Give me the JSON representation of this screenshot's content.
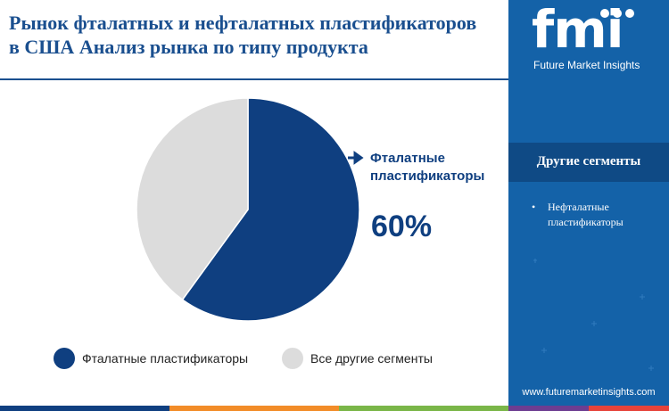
{
  "title_lines": [
    "Рынок фталатных и нефталатных пластификаторов",
    "в США Анализ рынка по типу продукта"
  ],
  "brand": {
    "logo_text": "fmi",
    "caption": "Future Market Insights",
    "website": "www.futuremarketinsights.com"
  },
  "other_segments": {
    "title": "Другие сегменты",
    "items": [
      "Нефталатные пластификаторы"
    ]
  },
  "colors": {
    "primary": "#0f3f80",
    "other": "#dcdcdc",
    "panel": "#1462a8",
    "accent_orange": "#f28c28",
    "accent_green": "#7ab648",
    "accent_purple": "#6d3d91",
    "accent_red": "#e6433a"
  },
  "chart_data": {
    "type": "pie",
    "title": "",
    "slices": [
      {
        "name": "Фталатные пластификаторы",
        "value": 60,
        "color": "#0f3f80"
      },
      {
        "name": "Все другие сегменты",
        "value": 40,
        "color": "#dcdcdc"
      }
    ],
    "callout": {
      "label_lines": [
        "Фталатные",
        "пластификаторы"
      ],
      "value": "60%"
    },
    "legend": {
      "position": "bottom",
      "items": [
        "Фталатные пластификаторы",
        "Все другие сегменты"
      ]
    }
  }
}
